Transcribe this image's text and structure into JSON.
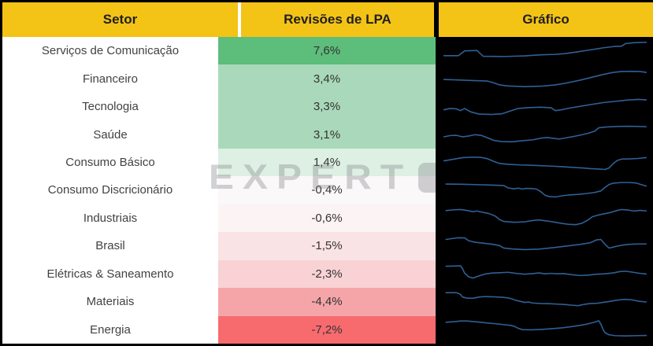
{
  "header": {
    "columns": [
      "Setor",
      "Revisões de LPA",
      "Gráfico"
    ]
  },
  "watermark": {
    "text": "EXPERT"
  },
  "colors": {
    "header_bg": "#F3C316",
    "header_text": "#1F1F1F",
    "label_col_bg": "#FFFFFF",
    "chart_col_bg": "#000000",
    "spark_line": "#2F6096",
    "positive_strong": "#5DBD7A",
    "negative_strong": "#F76B6F"
  },
  "chart_data": {
    "type": "table",
    "title": "Revisões de LPA por Setor",
    "columns": [
      "Setor",
      "Revisões de LPA",
      "Gráfico"
    ],
    "value_format": "pt-BR percent, comma decimal",
    "sparkline_note": "sparkline points are normalized shape estimates, x 0-100 left-right, y 0-100 top-down",
    "rows": [
      {
        "sector": "Serviços de Comunicação",
        "revision_label": "7,6%",
        "revision_value": 7.6,
        "cell_color": "#5DBD7A",
        "sparkline": [
          [
            1,
            72
          ],
          [
            8,
            72
          ],
          [
            11,
            50
          ],
          [
            17,
            48
          ],
          [
            20,
            75
          ],
          [
            30,
            76
          ],
          [
            40,
            73
          ],
          [
            48,
            68
          ],
          [
            55,
            66
          ],
          [
            60,
            62
          ],
          [
            66,
            54
          ],
          [
            72,
            45
          ],
          [
            78,
            36
          ],
          [
            83,
            30
          ],
          [
            87,
            28
          ],
          [
            89,
            16
          ],
          [
            93,
            12
          ],
          [
            99,
            10
          ]
        ]
      },
      {
        "sector": "Financeiro",
        "revision_label": "3,4%",
        "revision_value": 3.4,
        "cell_color": "#A9D9BA",
        "sparkline": [
          [
            1,
            55
          ],
          [
            8,
            57
          ],
          [
            15,
            60
          ],
          [
            22,
            62
          ],
          [
            25,
            70
          ],
          [
            28,
            80
          ],
          [
            32,
            85
          ],
          [
            40,
            88
          ],
          [
            48,
            86
          ],
          [
            55,
            80
          ],
          [
            60,
            72
          ],
          [
            67,
            58
          ],
          [
            73,
            44
          ],
          [
            78,
            32
          ],
          [
            83,
            22
          ],
          [
            87,
            18
          ],
          [
            92,
            17
          ],
          [
            96,
            18
          ],
          [
            99,
            22
          ]
        ]
      },
      {
        "sector": "Tecnologia",
        "revision_label": "3,3%",
        "revision_value": 3.3,
        "cell_color": "#A9D9BA",
        "sparkline": [
          [
            1,
            64
          ],
          [
            4,
            58
          ],
          [
            7,
            60
          ],
          [
            9,
            68
          ],
          [
            11,
            58
          ],
          [
            14,
            74
          ],
          [
            18,
            84
          ],
          [
            24,
            86
          ],
          [
            29,
            83
          ],
          [
            33,
            70
          ],
          [
            37,
            58
          ],
          [
            42,
            54
          ],
          [
            48,
            52
          ],
          [
            53,
            55
          ],
          [
            55,
            68
          ],
          [
            58,
            64
          ],
          [
            62,
            56
          ],
          [
            67,
            48
          ],
          [
            72,
            40
          ],
          [
            78,
            31
          ],
          [
            84,
            25
          ],
          [
            90,
            19
          ],
          [
            95,
            16
          ],
          [
            99,
            18
          ]
        ]
      },
      {
        "sector": "Saúde",
        "revision_label": "3,1%",
        "revision_value": 3.1,
        "cell_color": "#A9D9BA",
        "sparkline": [
          [
            1,
            62
          ],
          [
            4,
            56
          ],
          [
            7,
            55
          ],
          [
            10,
            62
          ],
          [
            13,
            58
          ],
          [
            16,
            52
          ],
          [
            19,
            55
          ],
          [
            22,
            66
          ],
          [
            25,
            78
          ],
          [
            29,
            84
          ],
          [
            34,
            85
          ],
          [
            39,
            80
          ],
          [
            44,
            76
          ],
          [
            48,
            68
          ],
          [
            51,
            65
          ],
          [
            54,
            69
          ],
          [
            57,
            72
          ],
          [
            60,
            67
          ],
          [
            64,
            60
          ],
          [
            68,
            52
          ],
          [
            71,
            45
          ],
          [
            74,
            36
          ],
          [
            76,
            20
          ],
          [
            80,
            16
          ],
          [
            85,
            14
          ],
          [
            90,
            13
          ],
          [
            95,
            14
          ],
          [
            99,
            15
          ]
        ]
      },
      {
        "sector": "Consumo Básico",
        "revision_label": "1,4%",
        "revision_value": 1.4,
        "cell_color": "#DDF0E3",
        "sparkline": [
          [
            1,
            42
          ],
          [
            6,
            34
          ],
          [
            10,
            27
          ],
          [
            15,
            25
          ],
          [
            19,
            26
          ],
          [
            22,
            32
          ],
          [
            25,
            44
          ],
          [
            28,
            54
          ],
          [
            32,
            58
          ],
          [
            38,
            61
          ],
          [
            45,
            63
          ],
          [
            52,
            66
          ],
          [
            58,
            69
          ],
          [
            63,
            72
          ],
          [
            68,
            75
          ],
          [
            72,
            78
          ],
          [
            76,
            80
          ],
          [
            79,
            82
          ],
          [
            81,
            75
          ],
          [
            83,
            55
          ],
          [
            85,
            40
          ],
          [
            87,
            34
          ],
          [
            91,
            33
          ],
          [
            95,
            31
          ],
          [
            99,
            27
          ]
        ]
      },
      {
        "sector": "Consumo Discricionário",
        "revision_label": "-0,4%",
        "revision_value": -0.4,
        "cell_color": "#FBF8F9",
        "sparkline": [
          [
            2,
            22
          ],
          [
            10,
            23
          ],
          [
            18,
            25
          ],
          [
            25,
            27
          ],
          [
            30,
            29
          ],
          [
            32,
            40
          ],
          [
            35,
            44
          ],
          [
            37,
            41
          ],
          [
            39,
            45
          ],
          [
            41,
            42
          ],
          [
            44,
            43
          ],
          [
            46,
            46
          ],
          [
            48,
            58
          ],
          [
            50,
            74
          ],
          [
            52,
            80
          ],
          [
            55,
            82
          ],
          [
            58,
            77
          ],
          [
            62,
            72
          ],
          [
            66,
            70
          ],
          [
            70,
            66
          ],
          [
            74,
            61
          ],
          [
            77,
            54
          ],
          [
            79,
            38
          ],
          [
            81,
            24
          ],
          [
            83,
            18
          ],
          [
            87,
            15
          ],
          [
            91,
            15
          ],
          [
            94,
            17
          ],
          [
            97,
            26
          ],
          [
            99,
            31
          ]
        ]
      },
      {
        "sector": "Industriais",
        "revision_label": "-0,6%",
        "revision_value": -0.6,
        "cell_color": "#FCF3F4",
        "sparkline": [
          [
            2,
            14
          ],
          [
            6,
            10
          ],
          [
            9,
            9
          ],
          [
            12,
            13
          ],
          [
            15,
            19
          ],
          [
            17,
            16
          ],
          [
            20,
            22
          ],
          [
            23,
            28
          ],
          [
            26,
            40
          ],
          [
            28,
            56
          ],
          [
            30,
            64
          ],
          [
            35,
            68
          ],
          [
            40,
            66
          ],
          [
            44,
            60
          ],
          [
            47,
            57
          ],
          [
            51,
            62
          ],
          [
            55,
            68
          ],
          [
            58,
            73
          ],
          [
            61,
            77
          ],
          [
            65,
            79
          ],
          [
            68,
            72
          ],
          [
            71,
            56
          ],
          [
            73,
            42
          ],
          [
            76,
            34
          ],
          [
            79,
            28
          ],
          [
            82,
            22
          ],
          [
            85,
            13
          ],
          [
            87,
            9
          ],
          [
            90,
            11
          ],
          [
            93,
            16
          ],
          [
            96,
            13
          ],
          [
            99,
            15
          ]
        ]
      },
      {
        "sector": "Brasil",
        "revision_label": "-1,5%",
        "revision_value": -1.5,
        "cell_color": "#FAE3E4",
        "sparkline": [
          [
            2,
            20
          ],
          [
            5,
            16
          ],
          [
            8,
            12
          ],
          [
            11,
            13
          ],
          [
            13,
            26
          ],
          [
            16,
            33
          ],
          [
            20,
            37
          ],
          [
            25,
            43
          ],
          [
            28,
            49
          ],
          [
            30,
            60
          ],
          [
            34,
            64
          ],
          [
            40,
            67
          ],
          [
            47,
            65
          ],
          [
            54,
            58
          ],
          [
            61,
            50
          ],
          [
            67,
            43
          ],
          [
            72,
            35
          ],
          [
            75,
            22
          ],
          [
            77,
            20
          ],
          [
            79,
            42
          ],
          [
            81,
            60
          ],
          [
            84,
            53
          ],
          [
            87,
            47
          ],
          [
            90,
            43
          ],
          [
            95,
            41
          ],
          [
            99,
            41
          ]
        ]
      },
      {
        "sector": "Elétricas & Saneamento",
        "revision_label": "-2,3%",
        "revision_value": -2.3,
        "cell_color": "#F8D2D4",
        "sparkline": [
          [
            2,
            13
          ],
          [
            6,
            12
          ],
          [
            9,
            11
          ],
          [
            10,
            24
          ],
          [
            11,
            45
          ],
          [
            13,
            62
          ],
          [
            15,
            68
          ],
          [
            18,
            58
          ],
          [
            21,
            49
          ],
          [
            24,
            45
          ],
          [
            28,
            43
          ],
          [
            32,
            41
          ],
          [
            36,
            46
          ],
          [
            40,
            50
          ],
          [
            44,
            47
          ],
          [
            47,
            44
          ],
          [
            50,
            48
          ],
          [
            53,
            46
          ],
          [
            56,
            48
          ],
          [
            59,
            47
          ],
          [
            63,
            52
          ],
          [
            67,
            56
          ],
          [
            71,
            54
          ],
          [
            75,
            50
          ],
          [
            79,
            48
          ],
          [
            83,
            44
          ],
          [
            86,
            38
          ],
          [
            89,
            36
          ],
          [
            92,
            40
          ],
          [
            96,
            46
          ],
          [
            99,
            49
          ]
        ]
      },
      {
        "sector": "Materiais",
        "revision_label": "-4,4%",
        "revision_value": -4.4,
        "cell_color": "#F5A5A8",
        "sparkline": [
          [
            2,
            8
          ],
          [
            7,
            8
          ],
          [
            9,
            16
          ],
          [
            10,
            28
          ],
          [
            12,
            33
          ],
          [
            15,
            34
          ],
          [
            18,
            28
          ],
          [
            21,
            26
          ],
          [
            25,
            27
          ],
          [
            29,
            29
          ],
          [
            32,
            32
          ],
          [
            34,
            37
          ],
          [
            36,
            44
          ],
          [
            38,
            48
          ],
          [
            40,
            53
          ],
          [
            42,
            51
          ],
          [
            44,
            56
          ],
          [
            48,
            58
          ],
          [
            52,
            59
          ],
          [
            56,
            61
          ],
          [
            60,
            63
          ],
          [
            63,
            66
          ],
          [
            66,
            68
          ],
          [
            69,
            62
          ],
          [
            72,
            58
          ],
          [
            75,
            57
          ],
          [
            78,
            53
          ],
          [
            81,
            49
          ],
          [
            84,
            44
          ],
          [
            87,
            40
          ],
          [
            89,
            39
          ],
          [
            92,
            41
          ],
          [
            95,
            47
          ],
          [
            99,
            51
          ]
        ]
      },
      {
        "sector": "Energia",
        "revision_label": "-7,2%",
        "revision_value": -7.2,
        "cell_color": "#F76B6F",
        "sparkline": [
          [
            2,
            14
          ],
          [
            6,
            11
          ],
          [
            9,
            8
          ],
          [
            12,
            8
          ],
          [
            16,
            11
          ],
          [
            21,
            16
          ],
          [
            26,
            21
          ],
          [
            30,
            25
          ],
          [
            33,
            28
          ],
          [
            35,
            32
          ],
          [
            37,
            42
          ],
          [
            39,
            48
          ],
          [
            43,
            49
          ],
          [
            48,
            47
          ],
          [
            53,
            44
          ],
          [
            58,
            40
          ],
          [
            63,
            34
          ],
          [
            67,
            28
          ],
          [
            70,
            23
          ],
          [
            73,
            16
          ],
          [
            75,
            10
          ],
          [
            76,
            7
          ],
          [
            77,
            22
          ],
          [
            78,
            45
          ],
          [
            79,
            62
          ],
          [
            81,
            72
          ],
          [
            84,
            76
          ],
          [
            89,
            77
          ],
          [
            94,
            76
          ],
          [
            99,
            75
          ]
        ]
      }
    ]
  }
}
